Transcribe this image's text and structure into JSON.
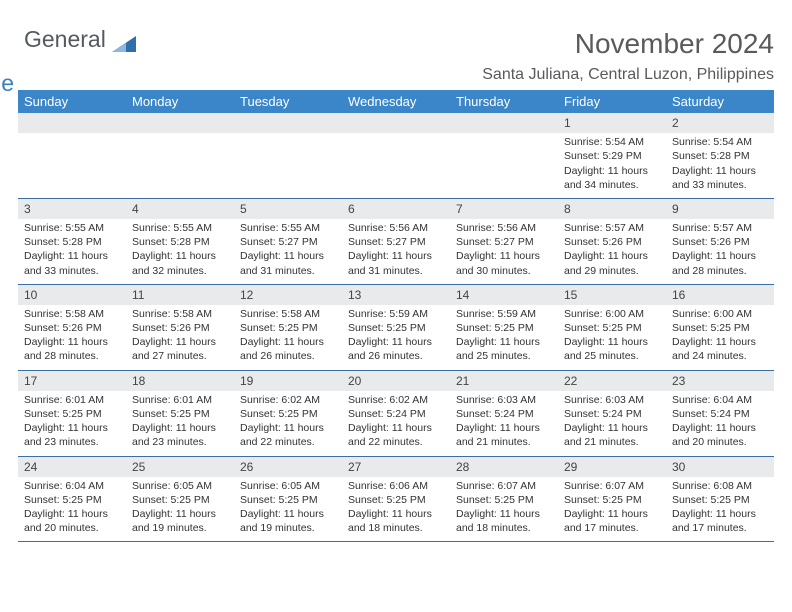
{
  "logo": {
    "word1": "General",
    "word2": "Blue",
    "color1": "#555a60",
    "color2": "#3a7fc1"
  },
  "header": {
    "title": "November 2024",
    "location": "Santa Juliana, Central Luzon, Philippines"
  },
  "calendar": {
    "header_bg": "#3a86c8",
    "header_fg": "#ffffff",
    "daynum_bg": "#e9eaeb",
    "border_color": "#3a6fa5",
    "day_names": [
      "Sunday",
      "Monday",
      "Tuesday",
      "Wednesday",
      "Thursday",
      "Friday",
      "Saturday"
    ],
    "weeks": [
      [
        {
          "n": "",
          "lines": []
        },
        {
          "n": "",
          "lines": []
        },
        {
          "n": "",
          "lines": []
        },
        {
          "n": "",
          "lines": []
        },
        {
          "n": "",
          "lines": []
        },
        {
          "n": "1",
          "lines": [
            "Sunrise: 5:54 AM",
            "Sunset: 5:29 PM",
            "Daylight: 11 hours",
            "and 34 minutes."
          ]
        },
        {
          "n": "2",
          "lines": [
            "Sunrise: 5:54 AM",
            "Sunset: 5:28 PM",
            "Daylight: 11 hours",
            "and 33 minutes."
          ]
        }
      ],
      [
        {
          "n": "3",
          "lines": [
            "Sunrise: 5:55 AM",
            "Sunset: 5:28 PM",
            "Daylight: 11 hours",
            "and 33 minutes."
          ]
        },
        {
          "n": "4",
          "lines": [
            "Sunrise: 5:55 AM",
            "Sunset: 5:28 PM",
            "Daylight: 11 hours",
            "and 32 minutes."
          ]
        },
        {
          "n": "5",
          "lines": [
            "Sunrise: 5:55 AM",
            "Sunset: 5:27 PM",
            "Daylight: 11 hours",
            "and 31 minutes."
          ]
        },
        {
          "n": "6",
          "lines": [
            "Sunrise: 5:56 AM",
            "Sunset: 5:27 PM",
            "Daylight: 11 hours",
            "and 31 minutes."
          ]
        },
        {
          "n": "7",
          "lines": [
            "Sunrise: 5:56 AM",
            "Sunset: 5:27 PM",
            "Daylight: 11 hours",
            "and 30 minutes."
          ]
        },
        {
          "n": "8",
          "lines": [
            "Sunrise: 5:57 AM",
            "Sunset: 5:26 PM",
            "Daylight: 11 hours",
            "and 29 minutes."
          ]
        },
        {
          "n": "9",
          "lines": [
            "Sunrise: 5:57 AM",
            "Sunset: 5:26 PM",
            "Daylight: 11 hours",
            "and 28 minutes."
          ]
        }
      ],
      [
        {
          "n": "10",
          "lines": [
            "Sunrise: 5:58 AM",
            "Sunset: 5:26 PM",
            "Daylight: 11 hours",
            "and 28 minutes."
          ]
        },
        {
          "n": "11",
          "lines": [
            "Sunrise: 5:58 AM",
            "Sunset: 5:26 PM",
            "Daylight: 11 hours",
            "and 27 minutes."
          ]
        },
        {
          "n": "12",
          "lines": [
            "Sunrise: 5:58 AM",
            "Sunset: 5:25 PM",
            "Daylight: 11 hours",
            "and 26 minutes."
          ]
        },
        {
          "n": "13",
          "lines": [
            "Sunrise: 5:59 AM",
            "Sunset: 5:25 PM",
            "Daylight: 11 hours",
            "and 26 minutes."
          ]
        },
        {
          "n": "14",
          "lines": [
            "Sunrise: 5:59 AM",
            "Sunset: 5:25 PM",
            "Daylight: 11 hours",
            "and 25 minutes."
          ]
        },
        {
          "n": "15",
          "lines": [
            "Sunrise: 6:00 AM",
            "Sunset: 5:25 PM",
            "Daylight: 11 hours",
            "and 25 minutes."
          ]
        },
        {
          "n": "16",
          "lines": [
            "Sunrise: 6:00 AM",
            "Sunset: 5:25 PM",
            "Daylight: 11 hours",
            "and 24 minutes."
          ]
        }
      ],
      [
        {
          "n": "17",
          "lines": [
            "Sunrise: 6:01 AM",
            "Sunset: 5:25 PM",
            "Daylight: 11 hours",
            "and 23 minutes."
          ]
        },
        {
          "n": "18",
          "lines": [
            "Sunrise: 6:01 AM",
            "Sunset: 5:25 PM",
            "Daylight: 11 hours",
            "and 23 minutes."
          ]
        },
        {
          "n": "19",
          "lines": [
            "Sunrise: 6:02 AM",
            "Sunset: 5:25 PM",
            "Daylight: 11 hours",
            "and 22 minutes."
          ]
        },
        {
          "n": "20",
          "lines": [
            "Sunrise: 6:02 AM",
            "Sunset: 5:24 PM",
            "Daylight: 11 hours",
            "and 22 minutes."
          ]
        },
        {
          "n": "21",
          "lines": [
            "Sunrise: 6:03 AM",
            "Sunset: 5:24 PM",
            "Daylight: 11 hours",
            "and 21 minutes."
          ]
        },
        {
          "n": "22",
          "lines": [
            "Sunrise: 6:03 AM",
            "Sunset: 5:24 PM",
            "Daylight: 11 hours",
            "and 21 minutes."
          ]
        },
        {
          "n": "23",
          "lines": [
            "Sunrise: 6:04 AM",
            "Sunset: 5:24 PM",
            "Daylight: 11 hours",
            "and 20 minutes."
          ]
        }
      ],
      [
        {
          "n": "24",
          "lines": [
            "Sunrise: 6:04 AM",
            "Sunset: 5:25 PM",
            "Daylight: 11 hours",
            "and 20 minutes."
          ]
        },
        {
          "n": "25",
          "lines": [
            "Sunrise: 6:05 AM",
            "Sunset: 5:25 PM",
            "Daylight: 11 hours",
            "and 19 minutes."
          ]
        },
        {
          "n": "26",
          "lines": [
            "Sunrise: 6:05 AM",
            "Sunset: 5:25 PM",
            "Daylight: 11 hours",
            "and 19 minutes."
          ]
        },
        {
          "n": "27",
          "lines": [
            "Sunrise: 6:06 AM",
            "Sunset: 5:25 PM",
            "Daylight: 11 hours",
            "and 18 minutes."
          ]
        },
        {
          "n": "28",
          "lines": [
            "Sunrise: 6:07 AM",
            "Sunset: 5:25 PM",
            "Daylight: 11 hours",
            "and 18 minutes."
          ]
        },
        {
          "n": "29",
          "lines": [
            "Sunrise: 6:07 AM",
            "Sunset: 5:25 PM",
            "Daylight: 11 hours",
            "and 17 minutes."
          ]
        },
        {
          "n": "30",
          "lines": [
            "Sunrise: 6:08 AM",
            "Sunset: 5:25 PM",
            "Daylight: 11 hours",
            "and 17 minutes."
          ]
        }
      ]
    ]
  }
}
